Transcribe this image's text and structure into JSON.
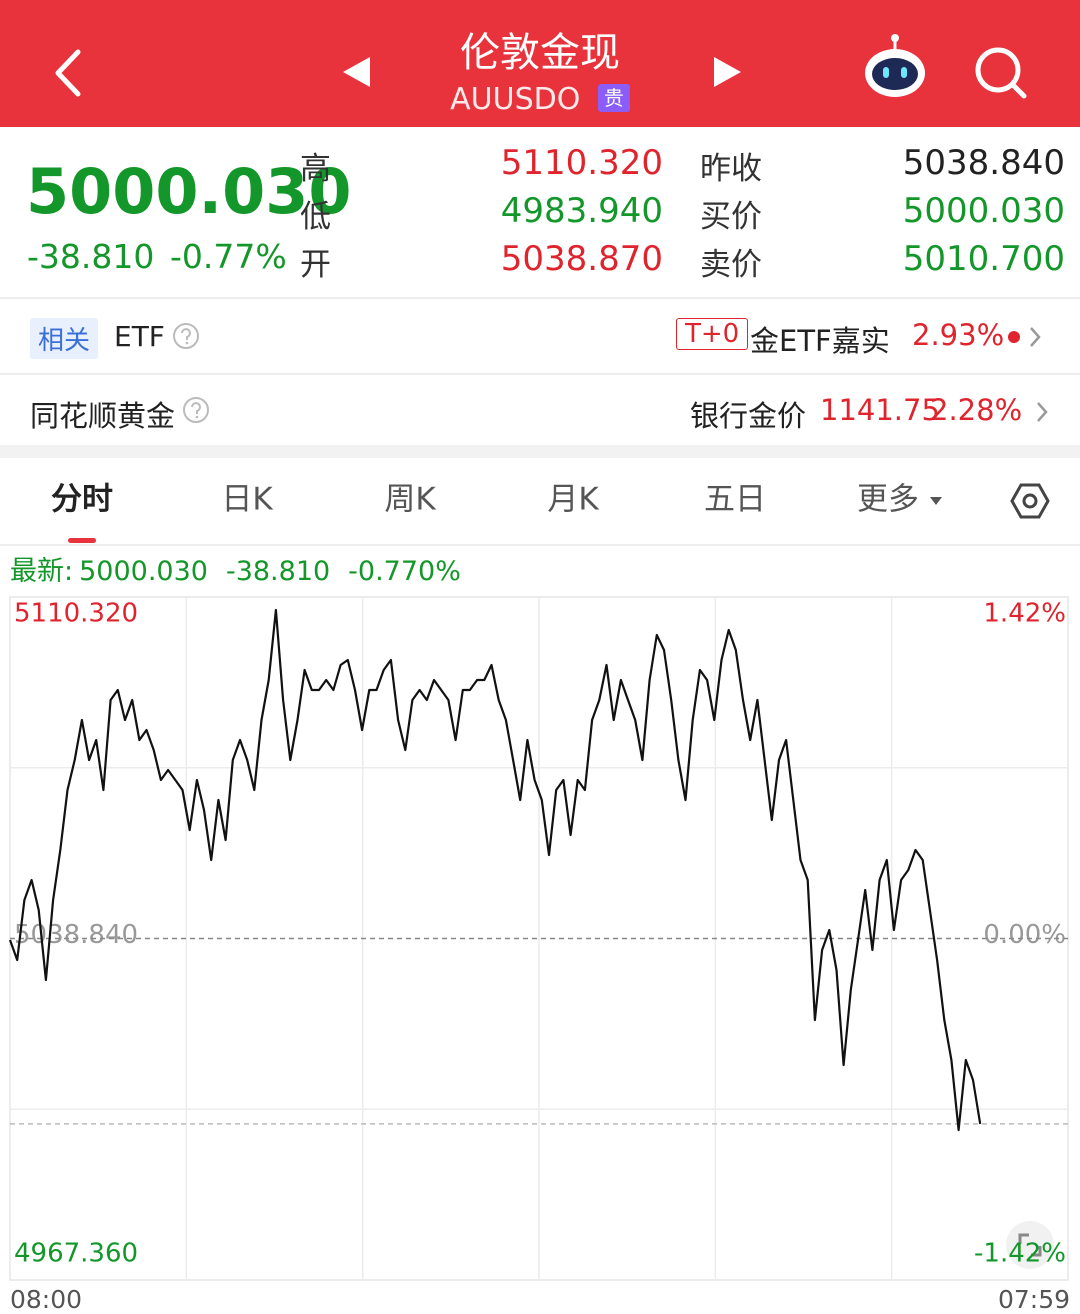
{
  "header": {
    "title": "伦敦金现",
    "code": "AUUSDO",
    "badge": "贵"
  },
  "quote": {
    "price": "5000.030",
    "change": "-38.810",
    "change_percent": "-0.77%",
    "color": "#14972a",
    "fields": [
      {
        "label": "高",
        "value": "5110.320",
        "color": "#e0242e"
      },
      {
        "label": "低",
        "value": "4983.940",
        "color": "#14972a"
      },
      {
        "label": "开",
        "value": "5038.870",
        "color": "#e0242e"
      },
      {
        "label": "昨收",
        "value": "5038.840",
        "color": "#222222"
      },
      {
        "label": "买价",
        "value": "5000.030",
        "color": "#14972a"
      },
      {
        "label": "卖价",
        "value": "5010.700",
        "color": "#14972a"
      }
    ]
  },
  "related": {
    "tag": "相关",
    "label": "ETF",
    "fund_tag": "T+0",
    "fund_name": "金ETF嘉实",
    "fund_change": "2.93%"
  },
  "gold": {
    "label": "同花顺黄金",
    "bank_label": "银行金价",
    "bank_price": "1141.75",
    "bank_change": "2.28%"
  },
  "tabs": {
    "items": [
      "分时",
      "日K",
      "周K",
      "月K",
      "五日",
      "更多"
    ],
    "active": 0
  },
  "latest": {
    "label": "最新:",
    "price": "5000.030",
    "change": "-38.810",
    "percent": "-0.770%"
  },
  "chart": {
    "type": "line",
    "color": "#111111",
    "x_labels": [
      "08:00",
      "07:59"
    ],
    "ylim": [
      4967.36,
      5110.32
    ],
    "yticks": [
      {
        "value": 4967.36,
        "label": "4967.360"
      },
      {
        "value": 5038.84,
        "label": "5038.840"
      },
      {
        "value": 5110.32,
        "label": "5110.320"
      }
    ],
    "y2lim": [
      -1.42,
      1.42
    ],
    "y2ticks": [
      {
        "value": -1.42,
        "label": "-1.42%"
      },
      {
        "value": 0,
        "label": "0.00%"
      },
      {
        "value": 1.42,
        "label": "1.42%"
      }
    ],
    "values": [
      5038.53,
      5034.34,
      5046.9,
      5051.09,
      5044.81,
      5030.15,
      5046.9,
      5057.36,
      5069.92,
      5076.2,
      5084.57,
      5076.2,
      5080.39,
      5069.92,
      5088.76,
      5090.85,
      5084.57,
      5088.76,
      5080.39,
      5082.48,
      5078.3,
      5072.02,
      5074.11,
      5072.02,
      5069.92,
      5061.55,
      5072.02,
      5065.74,
      5055.27,
      5067.83,
      5059.46,
      5076.2,
      5080.39,
      5076.2,
      5069.92,
      5084.57,
      5092.95,
      5107.6,
      5088.76,
      5076.2,
      5084.57,
      5095.04,
      5090.85,
      5090.85,
      5092.95,
      5090.85,
      5096.09,
      5097.13,
      5090.85,
      5082.48,
      5090.85,
      5090.85,
      5095.04,
      5097.13,
      5084.57,
      5078.3,
      5088.76,
      5090.85,
      5088.76,
      5092.95,
      5090.85,
      5088.76,
      5080.39,
      5090.85,
      5090.85,
      5092.95,
      5092.95,
      5096.09,
      5088.76,
      5084.57,
      5076.2,
      5067.83,
      5080.39,
      5072.02,
      5067.83,
      5056.32,
      5069.92,
      5072.02,
      5060.5,
      5072.02,
      5069.92,
      5084.57,
      5088.76,
      5096.09,
      5084.57,
      5092.95,
      5088.76,
      5084.57,
      5076.2,
      5092.95,
      5102.37,
      5099.23,
      5088.76,
      5076.2,
      5067.83,
      5084.57,
      5095.04,
      5092.95,
      5084.57,
      5097.13,
      5103.41,
      5099.23,
      5088.76,
      5080.39,
      5088.76,
      5076.2,
      5063.64,
      5076.2,
      5080.39,
      5067.83,
      5055.27,
      5051.09,
      5021.78,
      5036.43,
      5040.62,
      5032.25,
      5012.36,
      5028.06,
      5038.53,
      5048.99,
      5036.43,
      5051.09,
      5055.27,
      5040.62,
      5051.09,
      5053.18,
      5057.36,
      5055.27,
      5044.81,
      5034.34,
      5021.78,
      5013.41,
      4998.76,
      5013.41,
      5009.22,
      5000.03
    ]
  }
}
